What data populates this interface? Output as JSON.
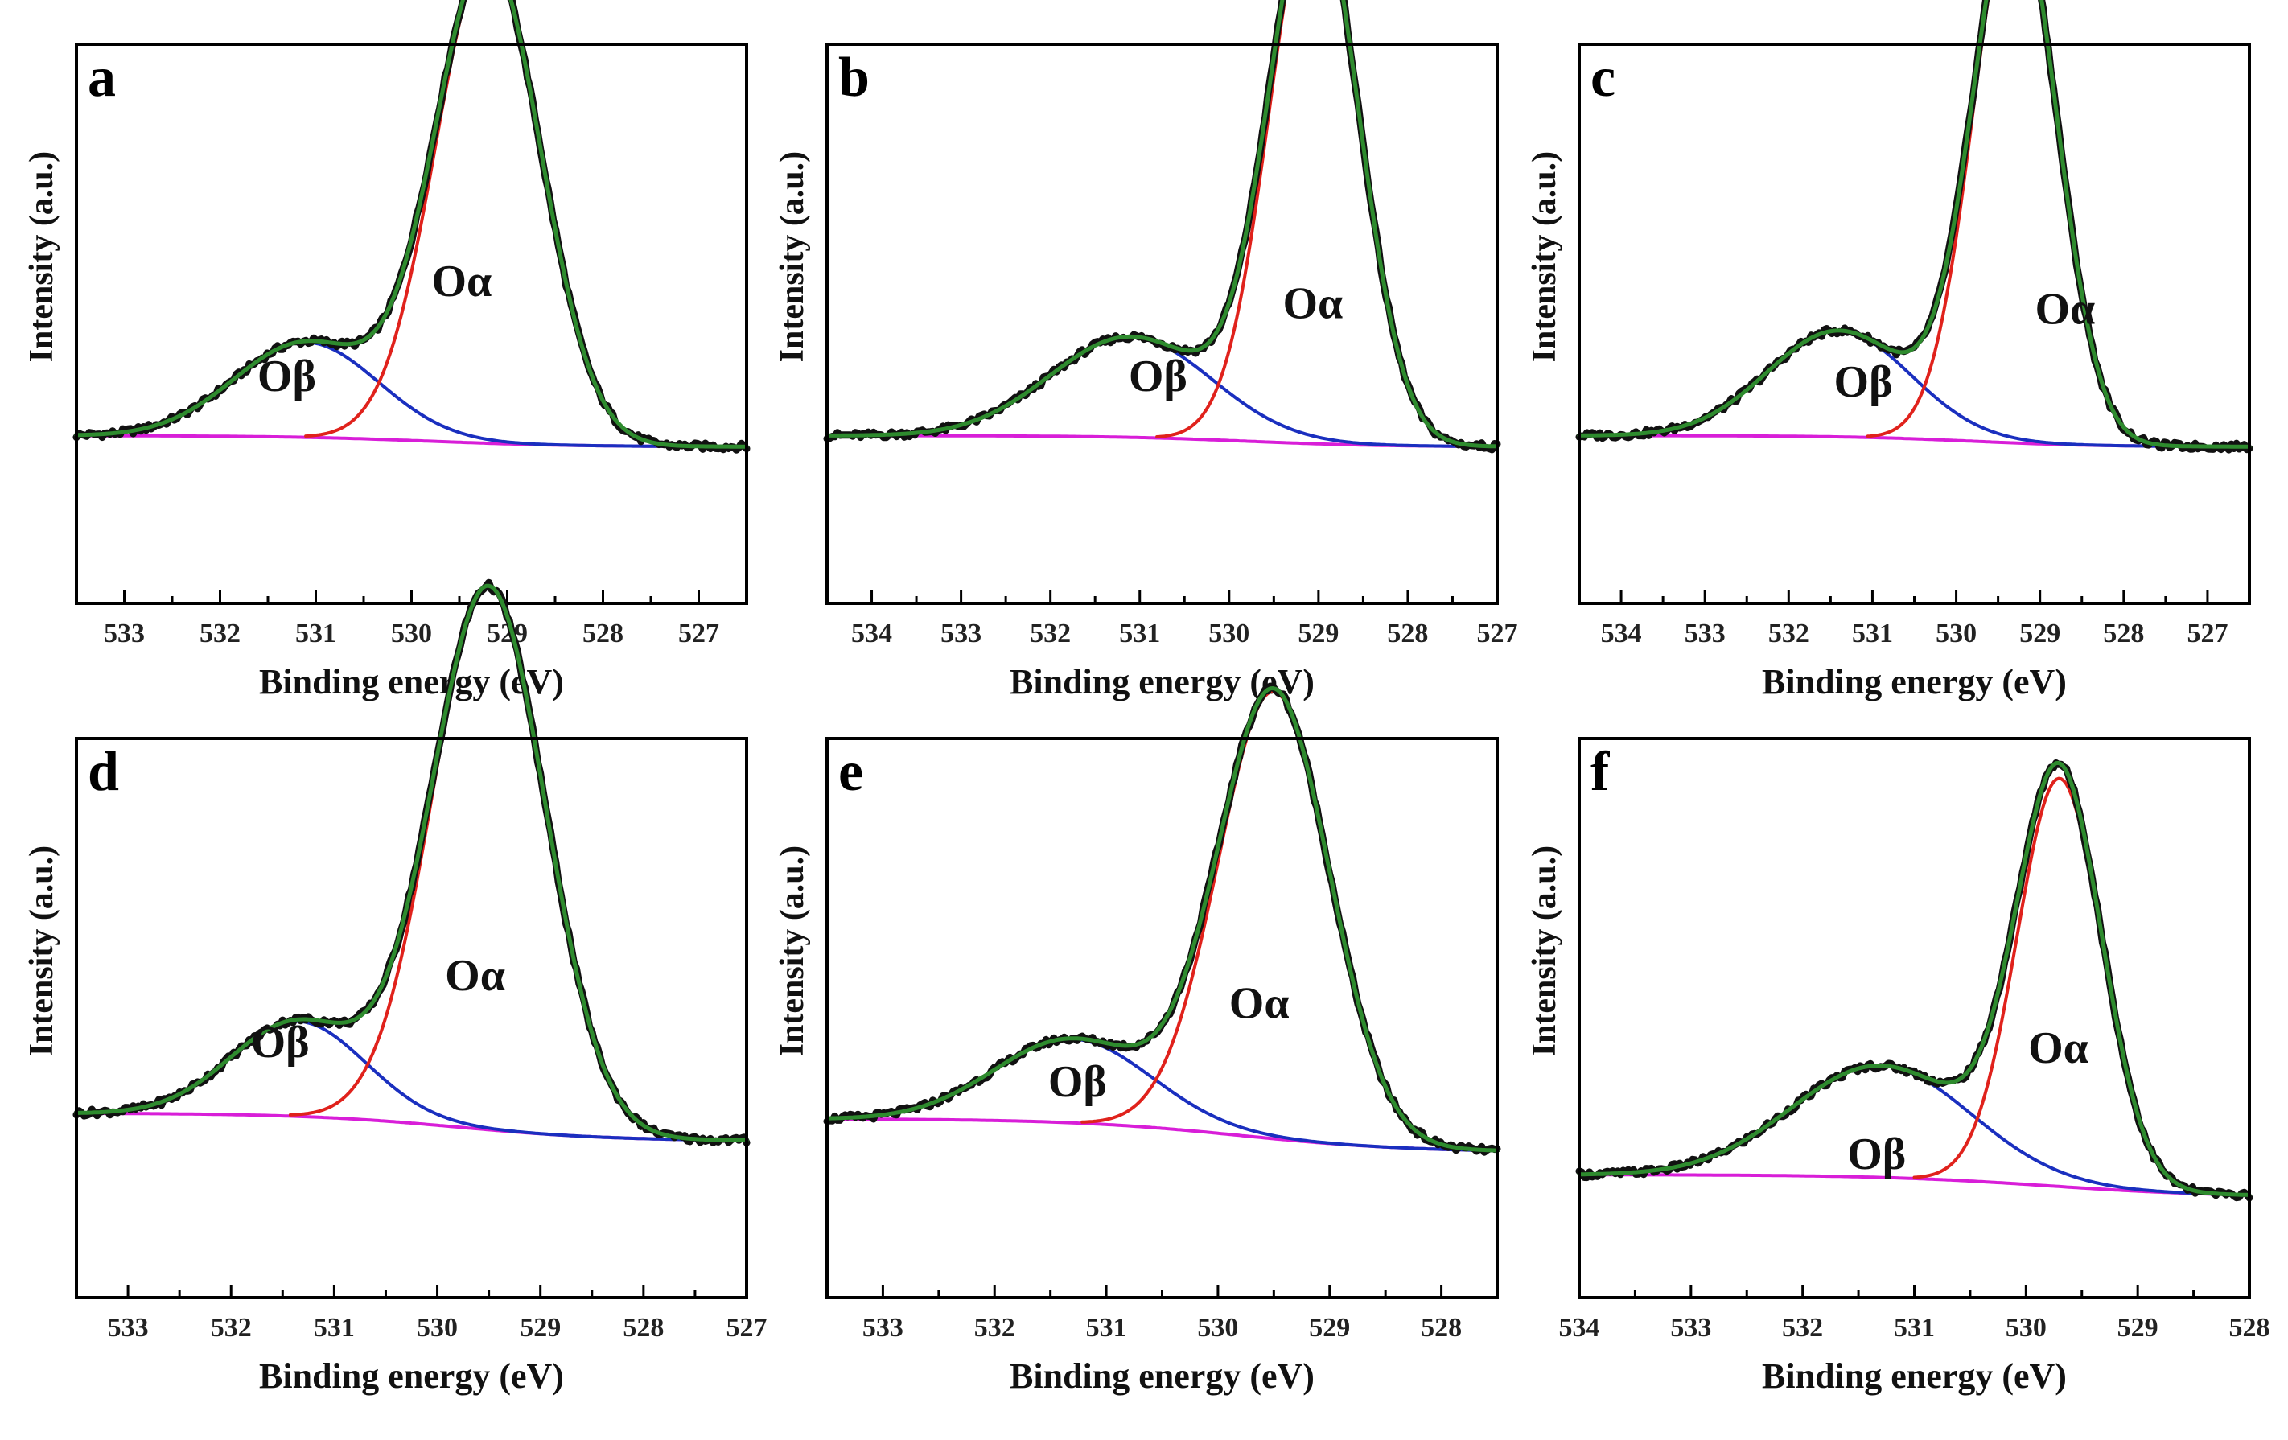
{
  "colors": {
    "raw": "#111111",
    "envelope": "#2e8b2e",
    "alpha": "#e0221c",
    "beta": "#1a2fbf",
    "background": "#d81ed8"
  },
  "chart_data": [
    {
      "panel": "a",
      "type": "line",
      "xlabel": "Binding energy (eV)",
      "ylabel": "Intensity (a.u.)",
      "xlim": [
        533.5,
        526.5
      ],
      "xticks": [
        533,
        532,
        531,
        530,
        529,
        528,
        527
      ],
      "xtick_labels": [
        "533",
        "532",
        "531",
        "530",
        "529",
        "528",
        "527"
      ],
      "alpha_label": "Oα",
      "beta_label": "Oβ",
      "alpha": {
        "center": 529.2,
        "height": 0.87,
        "sigma": 0.55
      },
      "beta": {
        "center": 531.1,
        "height": 0.17,
        "sigma": 0.75
      },
      "background_start": 0.3,
      "background_end": 0.28
    },
    {
      "panel": "b",
      "type": "line",
      "xlabel": "Binding energy (eV)",
      "ylabel": "Intensity (a.u.)",
      "xlim": [
        534.5,
        527
      ],
      "xticks": [
        534,
        533,
        532,
        531,
        530,
        529,
        528,
        527
      ],
      "xtick_labels": [
        "534",
        "533",
        "532",
        "531",
        "530",
        "529",
        "528",
        "527"
      ],
      "alpha_label": "Oα",
      "beta_label": "Oβ",
      "alpha": {
        "center": 529.05,
        "height": 0.98,
        "sigma": 0.5
      },
      "beta": {
        "center": 531.1,
        "height": 0.18,
        "sigma": 0.9
      },
      "background_start": 0.3,
      "background_end": 0.28
    },
    {
      "panel": "c",
      "type": "line",
      "xlabel": "Binding energy (eV)",
      "ylabel": "Intensity (a.u.)",
      "xlim": [
        534.5,
        526.5
      ],
      "xticks": [
        534,
        533,
        532,
        531,
        530,
        529,
        528,
        527
      ],
      "xtick_labels": [
        "534",
        "533",
        "532",
        "531",
        "530",
        "529",
        "528",
        "527"
      ],
      "alpha_label": "Oα",
      "beta_label": "Oβ",
      "alpha": {
        "center": 529.3,
        "height": 0.97,
        "sigma": 0.5
      },
      "beta": {
        "center": 531.4,
        "height": 0.19,
        "sigma": 0.85
      },
      "background_start": 0.3,
      "background_end": 0.28
    },
    {
      "panel": "d",
      "type": "line",
      "xlabel": "Binding energy (eV)",
      "ylabel": "Intensity (a.u.)",
      "xlim": [
        533.5,
        527
      ],
      "xticks": [
        533,
        532,
        531,
        530,
        529,
        528,
        527
      ],
      "xtick_labels": [
        "533",
        "532",
        "531",
        "530",
        "529",
        "528",
        "527"
      ],
      "alpha_label": "Oα",
      "beta_label": "Oβ",
      "alpha": {
        "center": 529.5,
        "height": 0.97,
        "sigma": 0.55
      },
      "beta": {
        "center": 531.35,
        "height": 0.17,
        "sigma": 0.65
      },
      "background_start": 0.33,
      "background_end": 0.28
    },
    {
      "panel": "e",
      "type": "line",
      "xlabel": "Binding energy (eV)",
      "ylabel": "Intensity (a.u.)",
      "xlim": [
        533.5,
        527.5
      ],
      "xticks": [
        533,
        532,
        531,
        530,
        529,
        528
      ],
      "xtick_labels": [
        "533",
        "532",
        "531",
        "530",
        "529",
        "528"
      ],
      "alpha_label": "Oα",
      "beta_label": "Oβ",
      "alpha": {
        "center": 529.5,
        "height": 0.8,
        "sigma": 0.5
      },
      "beta": {
        "center": 531.3,
        "height": 0.15,
        "sigma": 0.7
      },
      "background_start": 0.32,
      "background_end": 0.26
    },
    {
      "panel": "f",
      "type": "line",
      "xlabel": "Binding energy (eV)",
      "ylabel": "Intensity (a.u.)",
      "xlim": [
        534,
        528
      ],
      "xticks": [
        534,
        533,
        532,
        531,
        530,
        529,
        528
      ],
      "xtick_labels": [
        "534",
        "533",
        "532",
        "531",
        "530",
        "529",
        "528"
      ],
      "alpha_label": "Oα",
      "beta_label": "Oβ",
      "alpha": {
        "center": 529.7,
        "height": 0.73,
        "sigma": 0.38
      },
      "beta": {
        "center": 531.3,
        "height": 0.2,
        "sigma": 0.8
      },
      "background_start": 0.22,
      "background_end": 0.18
    }
  ]
}
